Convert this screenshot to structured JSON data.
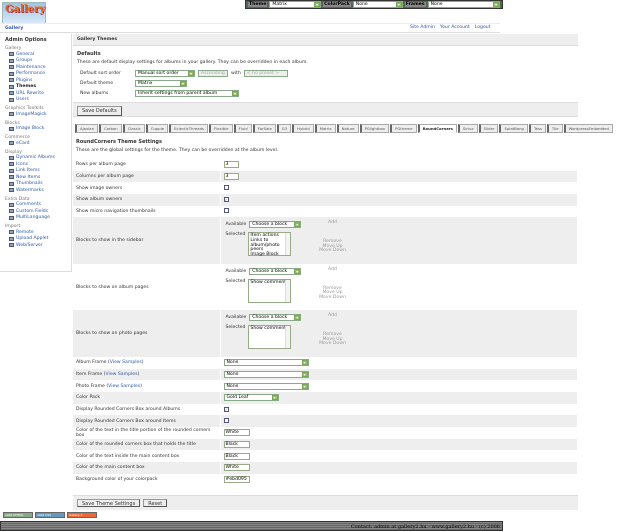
{
  "logo_text": "Gallery",
  "topbar": {
    "theme_label": "Theme",
    "theme_value": "Matrix",
    "colorpack_label": "ColorPack",
    "colorpack_value": "None",
    "frames_label": "Frames",
    "frames_value": "None"
  },
  "breadcrumb": "Gallery",
  "toplinks": [
    "Site Admin",
    "Your Account",
    "Logout"
  ],
  "sidebar": {
    "title": "Admin Options",
    "groups": [
      {
        "label": "Gallery",
        "items": [
          "General",
          "Groups",
          "Maintenance",
          "Performance",
          "Plugins",
          "Themes",
          "URL Rewrite",
          "Users"
        ],
        "active": "Themes"
      },
      {
        "label": "Graphics Toolkits",
        "items": [
          "ImageMagick"
        ]
      },
      {
        "label": "Blocks",
        "items": [
          "Image Block"
        ]
      },
      {
        "label": "Commerce",
        "items": [
          "eCard"
        ]
      },
      {
        "label": "Display",
        "items": [
          "Dynamic Albums",
          "Icons",
          "Link Items",
          "New Items",
          "Thumbnails",
          "Watermarks"
        ]
      },
      {
        "label": "Extra Data",
        "items": [
          "Comments",
          "Custom Fields",
          "MultiLanguage"
        ]
      },
      {
        "label": "Import",
        "items": [
          "Remote",
          "Upload Applet",
          "Web/Server"
        ]
      }
    ]
  },
  "main": {
    "title": "Gallery Themes",
    "defaults": {
      "heading": "Defaults",
      "description": "These are default display settings for albums in your gallery. They can be overridden in each album.",
      "sort_label": "Default sort order",
      "sort_value": "Manual sort order",
      "sort_dir": "Ascending",
      "with_label": "with",
      "with_value": "< no preset >",
      "theme_label": "Default theme",
      "theme_value": "Matrix",
      "new_label": "New albums",
      "new_value": "Inherit settings from parent album",
      "save_button": "Save Defaults"
    },
    "tabs": [
      "Ajaxian",
      "Carbon",
      "Classic",
      "Cupple",
      "EclecticThreads",
      "Flexible",
      "Fluid",
      "ForSale",
      "G3",
      "Hybrid",
      "Matrix",
      "Nature",
      "PGlightbox",
      "PGtheme",
      "RoundCorners",
      "Siriux",
      "Slider",
      "SplatBang",
      "Tess",
      "Tile",
      "WordpressEmbedded"
    ],
    "active_tab": "RoundCorners",
    "theme": {
      "heading": "RoundCorners Theme Settings",
      "description": "These are the global settings for the theme. They can be overridden at the album level.",
      "rows_label": "Rows per album page",
      "rows_value": "3",
      "cols_label": "Columns per album page",
      "cols_value": "3",
      "img_owners_label": "Show image owners",
      "img_owners": false,
      "album_owners_label": "Show album owners",
      "album_owners": true,
      "micro_label": "Show micro navigation thumbnails",
      "micro": false,
      "available_label": "Available",
      "selected_label": "Selected",
      "choose": "Choose a block",
      "add": "Add",
      "remove": "Remove",
      "move_up": "Move Up",
      "move_down": "Move Down",
      "sidebar_blocks_label": "Blocks to show in the sidebar",
      "sidebar_blocks": [
        "Item actions",
        "Links to album/photo peers",
        "Image Block"
      ],
      "album_blocks_label": "Blocks to show on album pages",
      "album_blocks": [
        "Show comments"
      ],
      "photo_blocks_label": "Blocks to show on photo pages",
      "photo_blocks": [
        "Show comments"
      ],
      "view_samples": "View Samples",
      "album_frame_label": "Album Frame",
      "album_frame": "None",
      "item_frame_label": "Item Frame",
      "item_frame": "None",
      "photo_frame_label": "Photo Frame",
      "photo_frame": "None",
      "colorpack_label": "Color Pack",
      "colorpack": "Gold Leaf",
      "rc_albums_label": "Display Rounded Corners Box around Albums",
      "rc_albums": true,
      "rc_items_label": "Display Rounded Corners Box around Items",
      "rc_items": false,
      "c1_label": "Color of the text in the title portion of the rounded corners box",
      "c1": "White",
      "c2_label": "Color of the rounded corners box that holds the title",
      "c2": "Black",
      "c3_label": "Color of the text inside the main content box",
      "c3": "Black",
      "c4_label": "Color of the main content box",
      "c4": "White",
      "c5_label": "Background color of your colorpack",
      "c5": "#ebd095",
      "save_button": "Save Theme Settings",
      "reset_button": "Reset"
    }
  },
  "badges": [
    "valid XHTML",
    "valid CSS",
    "Gallery 2"
  ],
  "footer": "Contact: admin at gallery2.hu - www.gallery2.hu - (c) 2006"
}
